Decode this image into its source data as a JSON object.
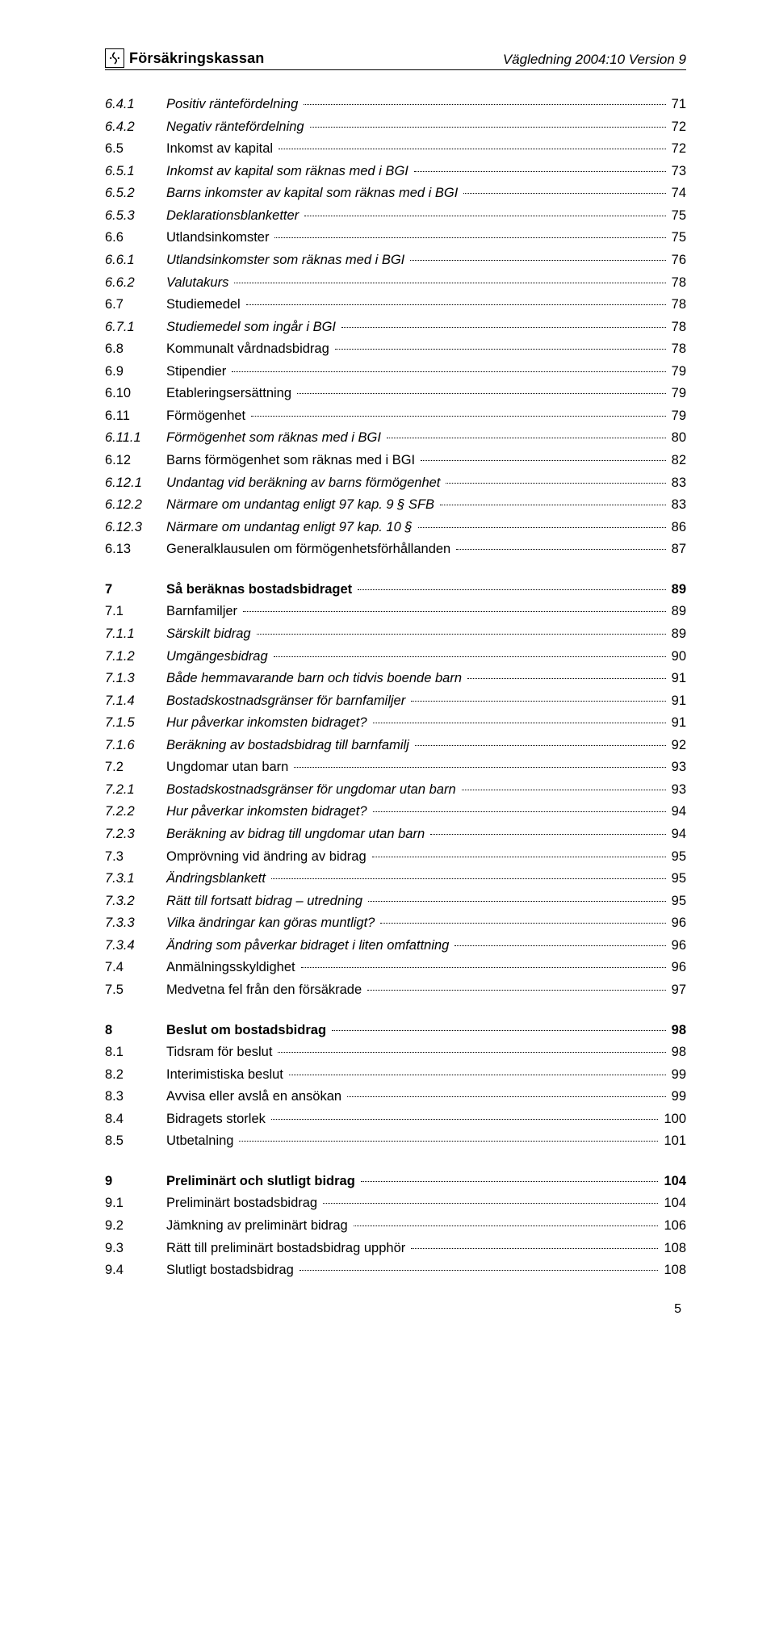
{
  "header": {
    "brand": "Försäkringskassan",
    "doc_ref": "Vägledning 2004:10 Version 9"
  },
  "footer": {
    "page": "5"
  },
  "toc": [
    {
      "n": "6.4.1",
      "t": "Positiv räntefördelning",
      "p": "71",
      "style": "italic"
    },
    {
      "n": "6.4.2",
      "t": "Negativ räntefördelning",
      "p": "72",
      "style": "italic"
    },
    {
      "n": "6.5",
      "t": "Inkomst av kapital",
      "p": "72",
      "style": "normal"
    },
    {
      "n": "6.5.1",
      "t": "Inkomst av kapital som räknas med i BGI",
      "p": "73",
      "style": "italic"
    },
    {
      "n": "6.5.2",
      "t": "Barns inkomster av kapital som räknas med i BGI",
      "p": "74",
      "style": "italic"
    },
    {
      "n": "6.5.3",
      "t": "Deklarationsblanketter",
      "p": "75",
      "style": "italic"
    },
    {
      "n": "6.6",
      "t": "Utlandsinkomster",
      "p": "75",
      "style": "normal"
    },
    {
      "n": "6.6.1",
      "t": "Utlandsinkomster som räknas med i BGI",
      "p": "76",
      "style": "italic"
    },
    {
      "n": "6.6.2",
      "t": "Valutakurs",
      "p": "78",
      "style": "italic"
    },
    {
      "n": "6.7",
      "t": "Studiemedel",
      "p": "78",
      "style": "normal"
    },
    {
      "n": "6.7.1",
      "t": "Studiemedel som ingår i BGI",
      "p": "78",
      "style": "italic"
    },
    {
      "n": "6.8",
      "t": "Kommunalt vårdnadsbidrag",
      "p": "78",
      "style": "normal"
    },
    {
      "n": "6.9",
      "t": "Stipendier",
      "p": "79",
      "style": "normal"
    },
    {
      "n": "6.10",
      "t": "Etableringsersättning",
      "p": "79",
      "style": "normal"
    },
    {
      "n": "6.11",
      "t": "Förmögenhet",
      "p": "79",
      "style": "normal"
    },
    {
      "n": "6.11.1",
      "t": "Förmögenhet som räknas med i BGI",
      "p": "80",
      "style": "italic"
    },
    {
      "n": "6.12",
      "t": "Barns förmögenhet som räknas med i BGI",
      "p": "82",
      "style": "normal"
    },
    {
      "n": "6.12.1",
      "t": "Undantag vid beräkning av barns förmögenhet",
      "p": "83",
      "style": "italic"
    },
    {
      "n": "6.12.2",
      "t": "Närmare om undantag enligt 97 kap. 9 § SFB",
      "p": "83",
      "style": "italic"
    },
    {
      "n": "6.12.3",
      "t": "Närmare om undantag enligt 97 kap. 10 §",
      "p": "86",
      "style": "italic"
    },
    {
      "n": "6.13",
      "t": "Generalklausulen om förmögenhetsförhållanden",
      "p": "87",
      "style": "normal"
    },
    {
      "gap": true
    },
    {
      "n": "7",
      "t": "Så beräknas bostadsbidraget",
      "p": "89",
      "style": "bold"
    },
    {
      "n": "7.1",
      "t": "Barnfamiljer",
      "p": "89",
      "style": "normal"
    },
    {
      "n": "7.1.1",
      "t": "Särskilt bidrag",
      "p": "89",
      "style": "italic"
    },
    {
      "n": "7.1.2",
      "t": "Umgängesbidrag",
      "p": "90",
      "style": "italic"
    },
    {
      "n": "7.1.3",
      "t": "Både hemmavarande barn och tidvis boende barn",
      "p": "91",
      "style": "italic"
    },
    {
      "n": "7.1.4",
      "t": "Bostadskostnadsgränser för barnfamiljer",
      "p": "91",
      "style": "italic"
    },
    {
      "n": "7.1.5",
      "t": "Hur påverkar inkomsten bidraget?",
      "p": "91",
      "style": "italic"
    },
    {
      "n": "7.1.6",
      "t": "Beräkning av bostadsbidrag till barnfamilj",
      "p": "92",
      "style": "italic"
    },
    {
      "n": "7.2",
      "t": "Ungdomar utan barn",
      "p": "93",
      "style": "normal"
    },
    {
      "n": "7.2.1",
      "t": "Bostadskostnadsgränser för ungdomar utan barn",
      "p": "93",
      "style": "italic"
    },
    {
      "n": "7.2.2",
      "t": "Hur påverkar inkomsten bidraget?",
      "p": "94",
      "style": "italic"
    },
    {
      "n": "7.2.3",
      "t": "Beräkning av bidrag till ungdomar utan barn",
      "p": "94",
      "style": "italic"
    },
    {
      "n": "7.3",
      "t": "Omprövning vid ändring av bidrag",
      "p": "95",
      "style": "normal"
    },
    {
      "n": "7.3.1",
      "t": "Ändringsblankett",
      "p": "95",
      "style": "italic"
    },
    {
      "n": "7.3.2",
      "t": "Rätt till fortsatt bidrag – utredning",
      "p": "95",
      "style": "italic"
    },
    {
      "n": "7.3.3",
      "t": "Vilka ändringar kan göras muntligt?",
      "p": "96",
      "style": "italic"
    },
    {
      "n": "7.3.4",
      "t": "Ändring som påverkar bidraget i liten omfattning",
      "p": "96",
      "style": "italic"
    },
    {
      "n": "7.4",
      "t": "Anmälningsskyldighet",
      "p": "96",
      "style": "normal"
    },
    {
      "n": "7.5",
      "t": "Medvetna fel från den försäkrade",
      "p": "97",
      "style": "normal"
    },
    {
      "gap": true
    },
    {
      "n": "8",
      "t": "Beslut om bostadsbidrag",
      "p": "98",
      "style": "bold"
    },
    {
      "n": "8.1",
      "t": "Tidsram för beslut",
      "p": "98",
      "style": "normal"
    },
    {
      "n": "8.2",
      "t": "Interimistiska beslut",
      "p": "99",
      "style": "normal"
    },
    {
      "n": "8.3",
      "t": "Avvisa eller avslå en ansökan",
      "p": "99",
      "style": "normal"
    },
    {
      "n": "8.4",
      "t": "Bidragets storlek",
      "p": "100",
      "style": "normal"
    },
    {
      "n": "8.5",
      "t": "Utbetalning",
      "p": "101",
      "style": "normal"
    },
    {
      "gap": true
    },
    {
      "n": "9",
      "t": "Preliminärt och slutligt bidrag",
      "p": "104",
      "style": "bold"
    },
    {
      "n": "9.1",
      "t": "Preliminärt bostadsbidrag",
      "p": "104",
      "style": "normal"
    },
    {
      "n": "9.2",
      "t": "Jämkning av preliminärt bidrag",
      "p": "106",
      "style": "normal"
    },
    {
      "n": "9.3",
      "t": "Rätt till preliminärt bostadsbidrag upphör",
      "p": "108",
      "style": "normal"
    },
    {
      "n": "9.4",
      "t": "Slutligt bostadsbidrag",
      "p": "108",
      "style": "normal"
    }
  ]
}
